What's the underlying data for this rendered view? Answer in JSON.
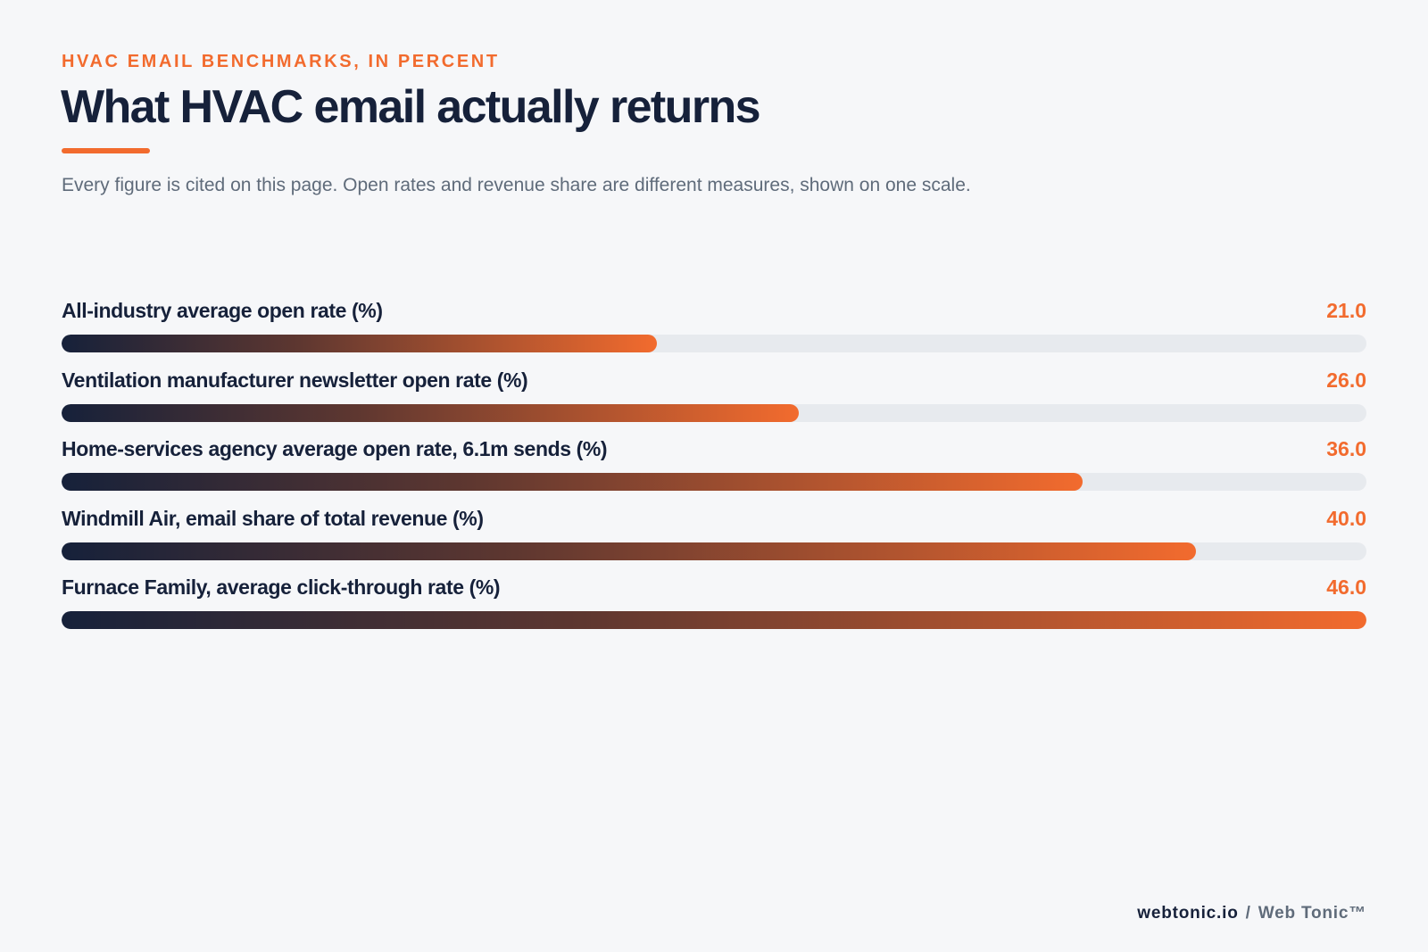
{
  "header": {
    "eyebrow": "HVAC EMAIL BENCHMARKS, IN PERCENT",
    "title": "What HVAC email actually returns",
    "subtitle": "Every figure is cited on this page. Open rates and revenue share are different measures, shown on one scale."
  },
  "chart_data": {
    "type": "bar",
    "orientation": "horizontal",
    "categories": [
      "All-industry average open rate (%)",
      "Ventilation manufacturer newsletter open rate (%)",
      "Home-services agency average open rate, 6.1m sends (%)",
      "Windmill Air, email share of total revenue (%)",
      "Furnace Family, average click-through rate (%)"
    ],
    "values": [
      21.0,
      26.0,
      36.0,
      40.0,
      46.0
    ],
    "value_labels": [
      "21.0",
      "26.0",
      "36.0",
      "40.0",
      "46.0"
    ],
    "xlim": [
      0,
      46
    ],
    "grid": false,
    "colors": {
      "fill_start": "#16213a",
      "fill_end": "#f26b2e",
      "track": "#e7eaee",
      "value_text": "#f26b2e"
    }
  },
  "footer": {
    "brand": "webtonic.io",
    "separator": "/",
    "name": "Web Tonic™"
  }
}
